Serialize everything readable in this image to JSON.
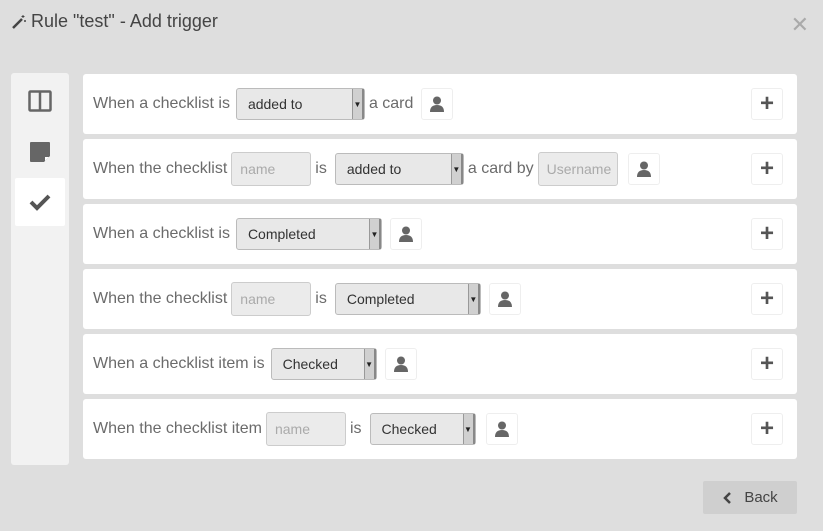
{
  "title": "Rule \"test\" - Add trigger",
  "sidebar": {
    "tabs": [
      {
        "icon": "columns-icon"
      },
      {
        "icon": "card-icon"
      },
      {
        "icon": "check-icon",
        "active": true
      }
    ]
  },
  "rows": [
    {
      "t1": "When a checklist is",
      "sel": "added to",
      "t3": "a card"
    },
    {
      "t1": "When the checklist",
      "name_ph": "name",
      "t2": "is",
      "sel": "added to",
      "t3": "a card by",
      "user_ph": "Username"
    },
    {
      "t1": "When a checklist is",
      "sel": "Completed"
    },
    {
      "t1": "When the checklist",
      "name_ph": "name",
      "t2": "is",
      "sel": "Completed"
    },
    {
      "t1": "When a checklist item is",
      "sel": "Checked"
    },
    {
      "t1": "When the checklist item",
      "name_ph": "name",
      "t2": "is",
      "sel": "Checked"
    }
  ],
  "back_label": "Back"
}
